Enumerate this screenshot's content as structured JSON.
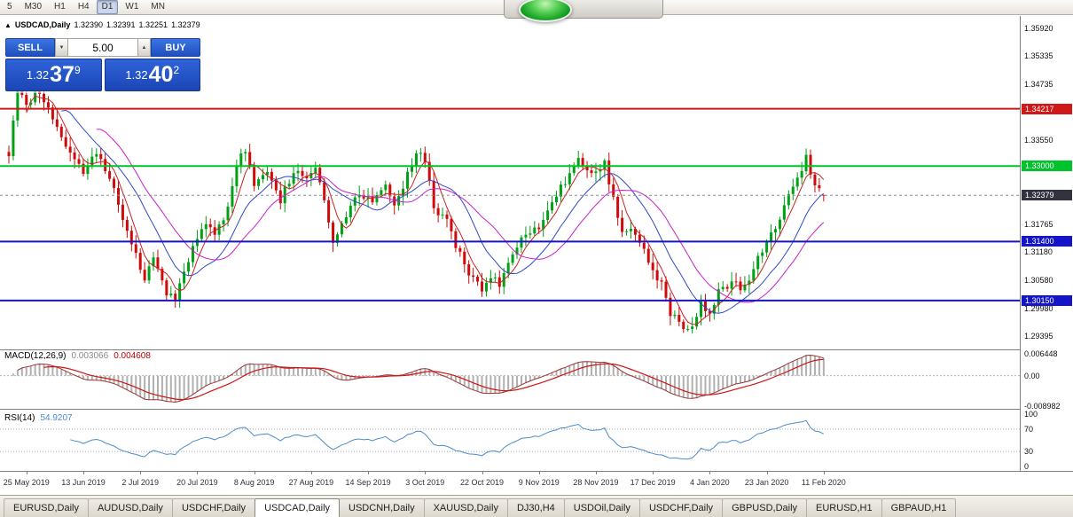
{
  "toolbar": {
    "timeframes": [
      "5",
      "M30",
      "H1",
      "H4",
      "D1",
      "W1",
      "MN"
    ],
    "selected_index": 4
  },
  "chart": {
    "header": {
      "collapse_glyph": "▲",
      "symbol": "USDCAD,Daily",
      "open": "1.32390",
      "high": "1.32391",
      "low": "1.32251",
      "close": "1.32379"
    },
    "trade_panel": {
      "sell_label": "SELL",
      "buy_label": "BUY",
      "volume": "5.00",
      "down_glyph": "▼",
      "up_glyph": "▲",
      "sell_price": {
        "big": "1.32",
        "pips": "37",
        "point": "9"
      },
      "buy_price": {
        "big": "1.32",
        "pips": "40",
        "point": "2"
      }
    },
    "levels": [
      {
        "value": 1.34217,
        "label": "1.34217",
        "color": "#d01818",
        "width": 2
      },
      {
        "value": 1.33,
        "label": "1.33000",
        "color": "#00c22a",
        "width": 2
      },
      {
        "value": 1.314,
        "label": "1.31400",
        "color": "#1414c8",
        "width": 2
      },
      {
        "value": 1.3015,
        "label": "1.30150",
        "color": "#1414c8",
        "width": 2
      }
    ],
    "current_price": {
      "value": 1.32379,
      "label": "1.32379",
      "color": "#33333f"
    },
    "price_axis": {
      "ticks": [
        {
          "value": 1.3592,
          "label": "1.35920"
        },
        {
          "value": 1.35335,
          "label": "1.35335"
        },
        {
          "value": 1.34735,
          "label": "1.34735"
        },
        {
          "value": 1.3355,
          "label": "1.33550"
        },
        {
          "value": 1.31765,
          "label": "1.31765"
        },
        {
          "value": 1.3118,
          "label": "1.31180"
        },
        {
          "value": 1.3058,
          "label": "1.30580"
        },
        {
          "value": 1.2998,
          "label": "1.29980"
        },
        {
          "value": 1.29395,
          "label": "1.29395"
        }
      ]
    },
    "x_axis": {
      "labels": [
        {
          "bar": 4,
          "text": "25 May 2019"
        },
        {
          "bar": 17,
          "text": "13 Jun 2019"
        },
        {
          "bar": 30,
          "text": "2 Jul 2019"
        },
        {
          "bar": 43,
          "text": "20 Jul 2019"
        },
        {
          "bar": 56,
          "text": "8 Aug 2019"
        },
        {
          "bar": 69,
          "text": "27 Aug 2019"
        },
        {
          "bar": 82,
          "text": "14 Sep 2019"
        },
        {
          "bar": 95,
          "text": "3 Oct 2019"
        },
        {
          "bar": 108,
          "text": "22 Oct 2019"
        },
        {
          "bar": 121,
          "text": "9 Nov 2019"
        },
        {
          "bar": 134,
          "text": "28 Nov 2019"
        },
        {
          "bar": 147,
          "text": "17 Dec 2019"
        },
        {
          "bar": 160,
          "text": "4 Jan 2020"
        },
        {
          "bar": 173,
          "text": "23 Jan 2020"
        },
        {
          "bar": 186,
          "text": "11 Feb 2020"
        }
      ]
    }
  },
  "macd": {
    "label": "MACD(12,26,9)",
    "value1": "0.003066",
    "value2": "0.004608",
    "fast": 12,
    "slow": 26,
    "signal": 9,
    "axis": [
      {
        "value": 0.006448,
        "label": "0.006448"
      },
      {
        "value": 0,
        "label": "0.00"
      },
      {
        "value": -0.008982,
        "label": "-0.008982"
      }
    ],
    "axis_max": 0.006448,
    "axis_min": -0.008982
  },
  "rsi": {
    "label": "RSI(14)",
    "value": "54.9207",
    "period": 14,
    "levels": [
      70,
      30
    ],
    "axis": [
      {
        "value": 100,
        "label": "100"
      },
      {
        "value": 70,
        "label": "70"
      },
      {
        "value": 30,
        "label": "30"
      },
      {
        "value": 0,
        "label": "0"
      }
    ]
  },
  "tabs": {
    "items": [
      "EURUSD,Daily",
      "AUDUSD,Daily",
      "USDCHF,Daily",
      "USDCAD,Daily",
      "USDCNH,Daily",
      "XAUUSD,Daily",
      "DJ30,H4",
      "USDOil,Daily",
      "USDCHF,Daily",
      "GBPUSD,Daily",
      "EURUSD,H1",
      "GBPAUD,H1"
    ],
    "active_index": 3
  },
  "chart_data": {
    "type": "candlestick",
    "symbol": "USDCAD",
    "timeframe": "Daily",
    "bars_count": 187,
    "visible_range": {
      "price_top": 1.3592,
      "price_bottom": 1.29395
    },
    "last_ohlc": {
      "open": 1.3239,
      "high": 1.32391,
      "low": 1.32251,
      "close": 1.32379
    },
    "close_path_anchors": [
      [
        0,
        1.333
      ],
      [
        2,
        1.3475
      ],
      [
        4,
        1.3435
      ],
      [
        7,
        1.346
      ],
      [
        10,
        1.3395
      ],
      [
        13,
        1.3345
      ],
      [
        17,
        1.328
      ],
      [
        20,
        1.333
      ],
      [
        24,
        1.3255
      ],
      [
        27,
        1.3155
      ],
      [
        31,
        1.306
      ],
      [
        33,
        1.3105
      ],
      [
        36,
        1.303
      ],
      [
        38,
        1.3018
      ],
      [
        42,
        1.313
      ],
      [
        45,
        1.318
      ],
      [
        47,
        1.3155
      ],
      [
        50,
        1.321
      ],
      [
        52,
        1.331
      ],
      [
        54,
        1.333
      ],
      [
        56,
        1.3255
      ],
      [
        59,
        1.3295
      ],
      [
        62,
        1.323
      ],
      [
        65,
        1.329
      ],
      [
        68,
        1.3275
      ],
      [
        70,
        1.33
      ],
      [
        72,
        1.323
      ],
      [
        74,
        1.314
      ],
      [
        77,
        1.32
      ],
      [
        80,
        1.3245
      ],
      [
        83,
        1.3225
      ],
      [
        86,
        1.3265
      ],
      [
        88,
        1.322
      ],
      [
        91,
        1.328
      ],
      [
        93,
        1.3335
      ],
      [
        95,
        1.331
      ],
      [
        97,
        1.321
      ],
      [
        100,
        1.318
      ],
      [
        103,
        1.311
      ],
      [
        106,
        1.306
      ],
      [
        108,
        1.304
      ],
      [
        110,
        1.307
      ],
      [
        112,
        1.305
      ],
      [
        115,
        1.311
      ],
      [
        118,
        1.316
      ],
      [
        121,
        1.3175
      ],
      [
        124,
        1.323
      ],
      [
        127,
        1.327
      ],
      [
        130,
        1.331
      ],
      [
        132,
        1.33
      ],
      [
        134,
        1.328
      ],
      [
        136,
        1.3305
      ],
      [
        138,
        1.323
      ],
      [
        140,
        1.3165
      ],
      [
        142,
        1.3175
      ],
      [
        145,
        1.312
      ],
      [
        147,
        1.308
      ],
      [
        149,
        1.305
      ],
      [
        151,
        1.299
      ],
      [
        154,
        1.2955
      ],
      [
        156,
        1.2962
      ],
      [
        158,
        1.301
      ],
      [
        160,
        1.299
      ],
      [
        162,
        1.3035
      ],
      [
        165,
        1.305
      ],
      [
        168,
        1.3042
      ],
      [
        171,
        1.3105
      ],
      [
        174,
        1.3155
      ],
      [
        177,
        1.3215
      ],
      [
        180,
        1.328
      ],
      [
        182,
        1.3315
      ],
      [
        184,
        1.3262
      ],
      [
        186,
        1.3238
      ]
    ],
    "wiggle": {
      "amplitude": 0.0009,
      "wick": 0.0016
    },
    "moving_averages": [
      {
        "period": 5,
        "color": "#cc2020"
      },
      {
        "period": 13,
        "color": "#3048c8"
      },
      {
        "period": 21,
        "color": "#c820c8"
      }
    ],
    "colors": {
      "up": "#00a114",
      "down": "#cf0a0a",
      "macd_hist": "#b0b0b0",
      "macd_line": "#9a3434",
      "macd_signal": "#d01414",
      "rsi_line": "#4a8cc8",
      "grid": "#c8c8c8"
    }
  }
}
